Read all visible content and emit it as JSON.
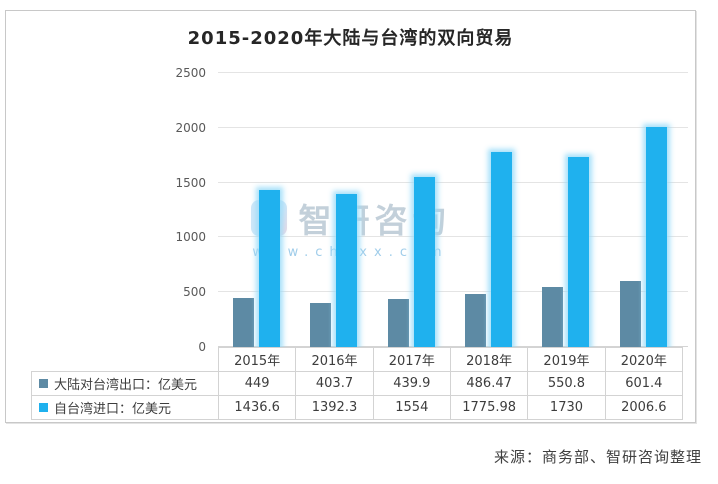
{
  "figure": {
    "title": "2015-2020年大陆与台湾的双向贸易",
    "source": "来源：商务部、智研咨询整理",
    "watermark": {
      "brand": "智研咨询",
      "url": "www.chyxx.com"
    }
  },
  "chart_data": {
    "type": "bar",
    "title": "2015-2020年大陆与台湾的双向贸易",
    "categories": [
      "2015年",
      "2016年",
      "2017年",
      "2018年",
      "2019年",
      "2020年"
    ],
    "series": [
      {
        "name": "大陆对台湾出口：亿美元",
        "color": "#5d8aa4",
        "values": [
          449,
          403.7,
          439.9,
          486.47,
          550.8,
          601.4
        ]
      },
      {
        "name": "自台湾进口：亿美元",
        "color": "#1fb1ee",
        "values": [
          1436.6,
          1392.3,
          1554,
          1775.98,
          1730,
          2006.6
        ]
      }
    ],
    "xlabel": "",
    "ylabel": "",
    "ylim": [
      0,
      2500
    ],
    "yticks": [
      0,
      500,
      1000,
      1500,
      2000,
      2500
    ],
    "grid": true,
    "legend_position": "table-left"
  },
  "colors": {
    "series_export": "#5d8aa4",
    "series_import": "#1fb1ee",
    "import_glow": "#96daf8",
    "gridline": "#e4e4e4",
    "frame_border": "#c8c8c8",
    "axis_text": "#595959",
    "watermark_text": "#b9c8d4"
  }
}
